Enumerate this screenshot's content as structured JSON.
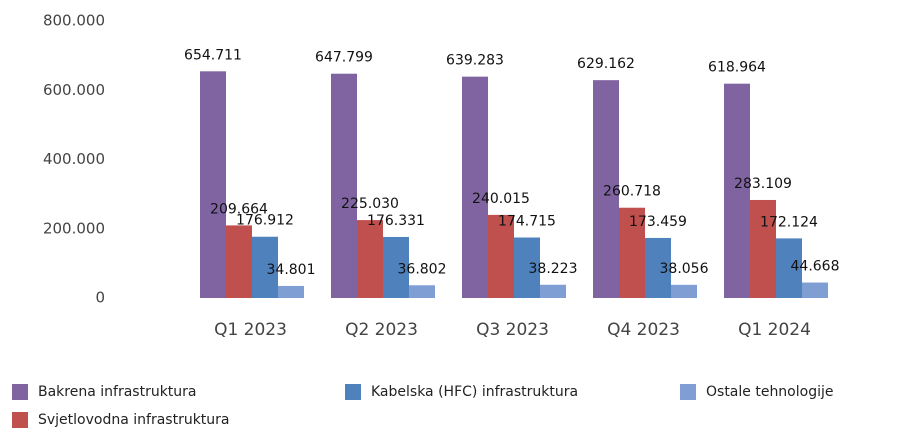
{
  "chart_data": {
    "type": "bar",
    "categories": [
      "Q1 2023",
      "Q2 2023",
      "Q3 2023",
      "Q4 2023",
      "Q1 2024"
    ],
    "series": [
      {
        "name": "Bakrena infrastruktura",
        "color": "#8064a2",
        "values": [
          654711,
          647799,
          639283,
          629162,
          618964
        ],
        "value_labels": [
          "654.711",
          "647.799",
          "639.283",
          "629.162",
          "618.964"
        ]
      },
      {
        "name": "Svjetlovodna infrastruktura",
        "color": "#c0504d",
        "values": [
          209664,
          225030,
          240015,
          260718,
          283109
        ],
        "value_labels": [
          "209.664",
          "225.030",
          "240.015",
          "260.718",
          "283.109"
        ]
      },
      {
        "name": "Kabelska (HFC) infrastruktura",
        "color": "#4f81bd",
        "values": [
          176912,
          176331,
          174715,
          173459,
          172124
        ],
        "value_labels": [
          "176.912",
          "176.331",
          "174.715",
          "173.459",
          "172.124"
        ]
      },
      {
        "name": "Ostale tehnologije",
        "color": "#7f9fd4",
        "values": [
          34801,
          36802,
          38223,
          38056,
          44668
        ],
        "value_labels": [
          "34.801",
          "36.802",
          "38.223",
          "38.056",
          "44.668"
        ]
      }
    ],
    "ylim": [
      0,
      800000
    ],
    "yticks": [
      {
        "value": 0,
        "label": "0"
      },
      {
        "value": 200000,
        "label": "200.000"
      },
      {
        "value": 400000,
        "label": "400.000"
      },
      {
        "value": 600000,
        "label": "600.000"
      },
      {
        "value": 800000,
        "label": "800.000"
      }
    ],
    "legend": "bottom"
  }
}
